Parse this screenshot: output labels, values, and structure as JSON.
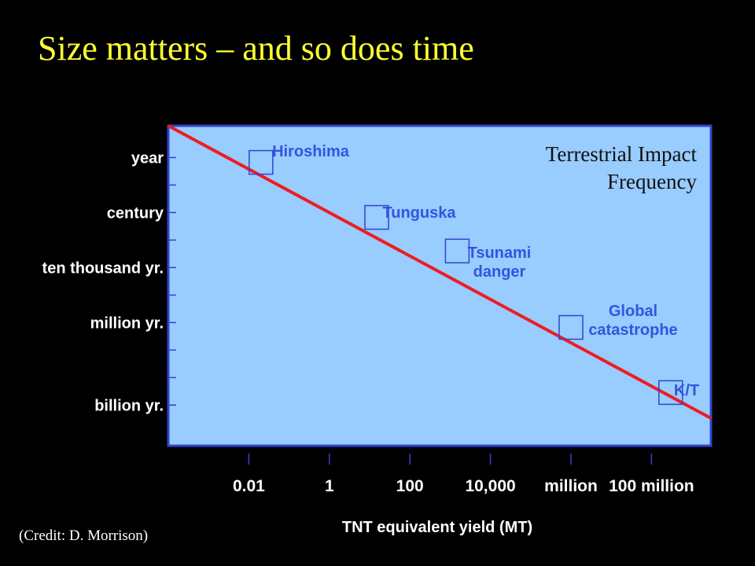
{
  "slide": {
    "title": "Size matters – and so does time",
    "credit": "(Credit:  D. Morrison)"
  },
  "colors": {
    "background": "#000000",
    "title": "#ffff33",
    "plot_fill": "#99ccff",
    "plot_border": "#3344cc",
    "trend_line": "#ee1c24",
    "event_label": "#3355dd",
    "axis_text": "#ffffff",
    "in_plot_title": "#111111"
  },
  "chart_data": {
    "type": "line",
    "title": "Terrestrial Impact Frequency",
    "title_lines": [
      "Terrestrial Impact",
      "Frequency"
    ],
    "xlabel": "TNT equivalent yield (MT)",
    "ylabel": "",
    "x_scale": "log",
    "y_scale": "log",
    "x_ticks": [
      {
        "value": 0.01,
        "label": "0.01"
      },
      {
        "value": 1,
        "label": "1"
      },
      {
        "value": 100,
        "label": "100"
      },
      {
        "value": 10000,
        "label": "10,000"
      },
      {
        "value": 1000000,
        "label": "million"
      },
      {
        "value": 100000000,
        "label": "100 million"
      }
    ],
    "y_ticks": [
      {
        "value": 1,
        "label": "year"
      },
      {
        "value": 100,
        "label": "century"
      },
      {
        "value": 10000,
        "label": "ten thousand yr."
      },
      {
        "value": 1000000,
        "label": "million yr."
      },
      {
        "value": 1000000000,
        "label": "billion yr."
      }
    ],
    "y_minor_ticks": [
      10,
      1000,
      100000,
      10000000,
      100000000,
      1000000000
    ],
    "xlim": [
      0.0001,
      3000000000
    ],
    "ylim": [
      0.07,
      30000000000
    ],
    "y_direction": "down",
    "trend_line": {
      "x": [
        0.0001,
        3000000000
      ],
      "y": [
        0.07,
        3000000000
      ]
    },
    "events": [
      {
        "name": "Hiroshima",
        "lines": [
          "Hiroshima"
        ],
        "x": 0.02,
        "y": 1.5
      },
      {
        "name": "Tunguska",
        "lines": [
          "Tunguska"
        ],
        "x": 15,
        "y": 150
      },
      {
        "name": "Tsunami danger",
        "lines": [
          "Tsunami",
          "danger"
        ],
        "x": 1500,
        "y": 2500
      },
      {
        "name": "Global catastrophe",
        "lines": [
          "Global",
          "catastrophe"
        ],
        "x": 1000000,
        "y": 1500000
      },
      {
        "name": "K/T",
        "lines": [
          "K/T"
        ],
        "x": 300000000,
        "y": 350000000
      }
    ],
    "grid": false,
    "legend": "none"
  }
}
